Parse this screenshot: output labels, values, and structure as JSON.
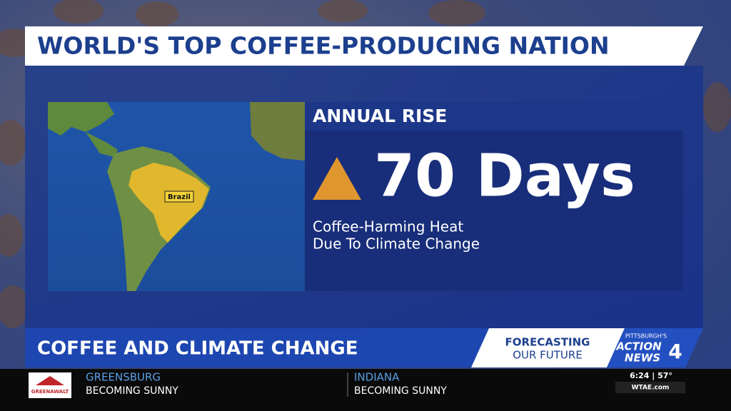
{
  "header": {
    "title": "WORLD'S TOP COFFEE-PRODUCING NATION"
  },
  "map": {
    "label": "Brazil"
  },
  "stat": {
    "heading": "ANNUAL RISE",
    "value": "70 Days",
    "caption": [
      "Coffee-Harming Heat",
      "Due To Climate Change"
    ]
  },
  "lower_third": {
    "title": "COFFEE AND CLIMATE CHANGE",
    "segment": [
      "FORECASTING",
      "OUR FUTURE"
    ],
    "station": [
      "PITTSBURGH'S",
      "ACTION",
      "NEWS",
      "4"
    ]
  },
  "ticker": {
    "sponsor": "GREENAWALT",
    "items": [
      {
        "place": "GREENSBURG",
        "forecast": "BECOMING SUNNY"
      },
      {
        "place": "INDIANA",
        "forecast": "BECOMING SUNNY"
      }
    ],
    "time_temp": "6:24 | 57°",
    "site": "WTAE.com"
  }
}
